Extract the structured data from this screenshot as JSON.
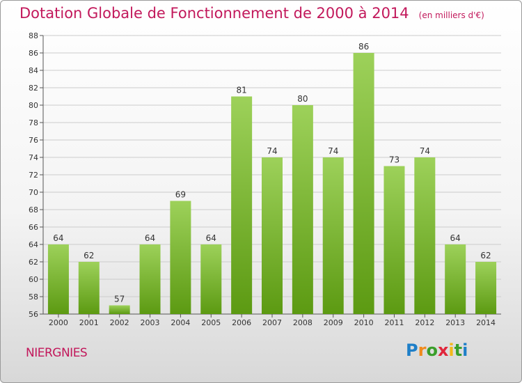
{
  "title": "Dotation Globale de Fonctionnement de 2000 à 2014",
  "subtitle": "(en milliers d'€)",
  "commune": "NIERGNIES",
  "logo": "Proxiti",
  "colors": {
    "bar_top": "#9dd15a",
    "bar_bottom": "#5c9a12",
    "title": "#c2185b",
    "grid": "#cccccc"
  },
  "chart_data": {
    "type": "bar",
    "title": "Dotation Globale de Fonctionnement de 2000 à 2014",
    "subtitle": "(en milliers d'€)",
    "xlabel": "",
    "ylabel": "",
    "categories": [
      "2000",
      "2001",
      "2002",
      "2003",
      "2004",
      "2005",
      "2006",
      "2007",
      "2008",
      "2009",
      "2010",
      "2011",
      "2012",
      "2013",
      "2014"
    ],
    "values": [
      64,
      62,
      57,
      64,
      69,
      64,
      81,
      74,
      80,
      74,
      86,
      73,
      74,
      64,
      62
    ],
    "ylim": [
      56,
      88
    ],
    "yticks": [
      56,
      58,
      60,
      62,
      64,
      66,
      68,
      70,
      72,
      74,
      76,
      78,
      80,
      82,
      84,
      86,
      88
    ],
    "grid": true,
    "data_labels": true
  }
}
